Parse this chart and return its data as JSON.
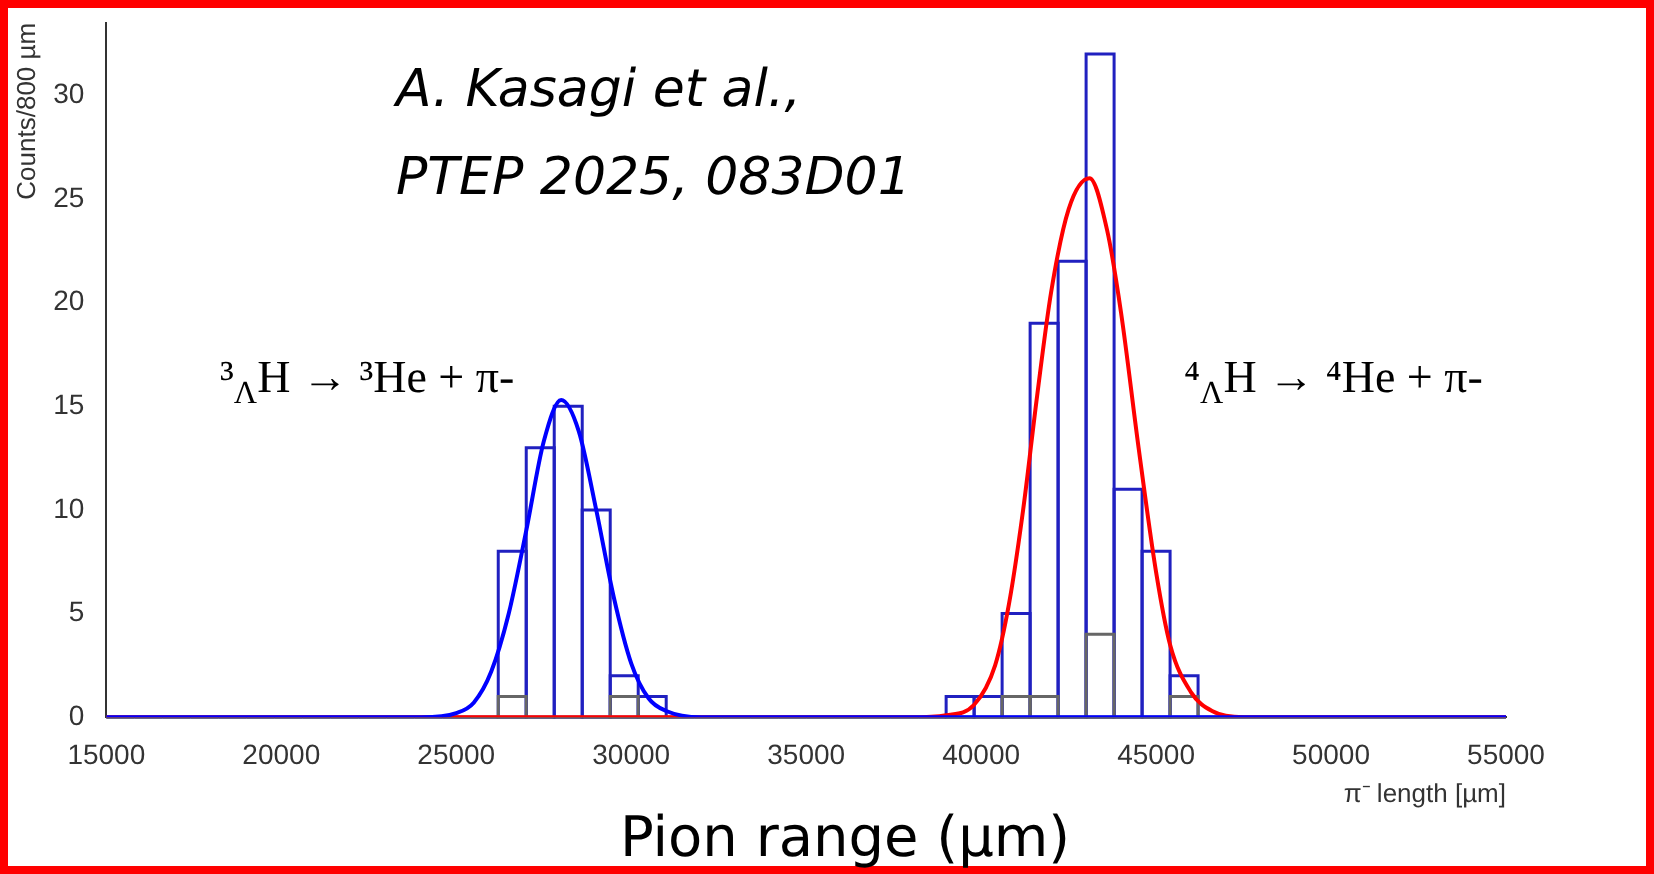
{
  "chart_data": {
    "type": "histogram",
    "xlabel": "π⁻ length [µm]",
    "ylabel": "Counts/800 µm",
    "annotations": [
      "A. Kasagi et al.,",
      "PTEP 2025, 083D01",
      "³$_{Λ}$H → ³He + π-",
      "⁴$_{Λ}$H → ⁴He + π-",
      "Pion range (μm)"
    ],
    "bins": [
      15000,
      15800,
      16600,
      17400,
      18200,
      19000,
      19800,
      20600,
      21400,
      22200,
      23000,
      23800,
      24600,
      25400,
      26200,
      27000,
      27800,
      28600,
      29400,
      30200,
      31000,
      31800,
      32600,
      33400,
      34200,
      35000,
      35800,
      36600,
      37400,
      38200,
      39000,
      39800,
      40600,
      41400,
      42200,
      43000,
      43800,
      44600,
      45400,
      46200,
      47000,
      47800,
      48600,
      49400,
      50200,
      51000,
      51800,
      52600,
      53400,
      54200,
      55000
    ],
    "series": [
      {
        "color": "#2020c0",
        "values": [
          0,
          0,
          0,
          0,
          0,
          0,
          0,
          0,
          0,
          0,
          0,
          0,
          0,
          0,
          8,
          13,
          15,
          10,
          2,
          1,
          0,
          0,
          0,
          0,
          0,
          0,
          0,
          0,
          0,
          0,
          1,
          1,
          5,
          19,
          22,
          32,
          11,
          8,
          2,
          0,
          0,
          0,
          0,
          0,
          0,
          0,
          0,
          0,
          0,
          0
        ]
      },
      {
        "color": "#666666",
        "values": [
          0,
          0,
          0,
          0,
          0,
          0,
          0,
          0,
          0,
          0,
          0,
          0,
          0,
          0,
          1,
          0,
          0,
          0,
          1,
          0,
          0,
          0,
          0,
          0,
          0,
          0,
          0,
          0,
          0,
          0,
          0,
          0,
          1,
          1,
          0,
          4,
          0,
          0,
          1,
          0,
          0,
          0,
          0,
          0,
          0,
          0,
          0,
          0,
          0,
          0
        ]
      },
      {
        "type": "line",
        "color": "#0000ff",
        "x": [
          15000,
          24000,
          25000,
          25500,
          26000,
          26500,
          27000,
          27500,
          28000,
          28500,
          29000,
          29500,
          30000,
          30500,
          31000,
          32000,
          55000
        ],
        "values": [
          0,
          0,
          0.2,
          0.7,
          2.2,
          5,
          9,
          13.3,
          15.3,
          13.8,
          10,
          5.8,
          2.6,
          0.9,
          0.3,
          0,
          0
        ]
      },
      {
        "type": "line",
        "color": "#ff0000",
        "x": [
          15000,
          38000,
          39000,
          39800,
          40400,
          40800,
          41200,
          41600,
          42000,
          42500,
          43100,
          43600,
          44000,
          44500,
          45000,
          45400,
          46000,
          46600,
          47500,
          55000
        ],
        "values": [
          0,
          0,
          0.1,
          0.6,
          2.5,
          5.5,
          10,
          15.5,
          20.5,
          24.5,
          26,
          23.5,
          19.5,
          13,
          7,
          3.5,
          1.2,
          0.3,
          0,
          0
        ]
      }
    ],
    "xlim": [
      15000,
      55000
    ],
    "ylim": [
      0,
      33.5
    ],
    "xticks": [
      15000,
      20000,
      25000,
      30000,
      35000,
      40000,
      45000,
      50000,
      55000
    ],
    "yticks": [
      0,
      5,
      10,
      15,
      20,
      25,
      30
    ],
    "grid": false,
    "legend": false,
    "marker": "none"
  }
}
